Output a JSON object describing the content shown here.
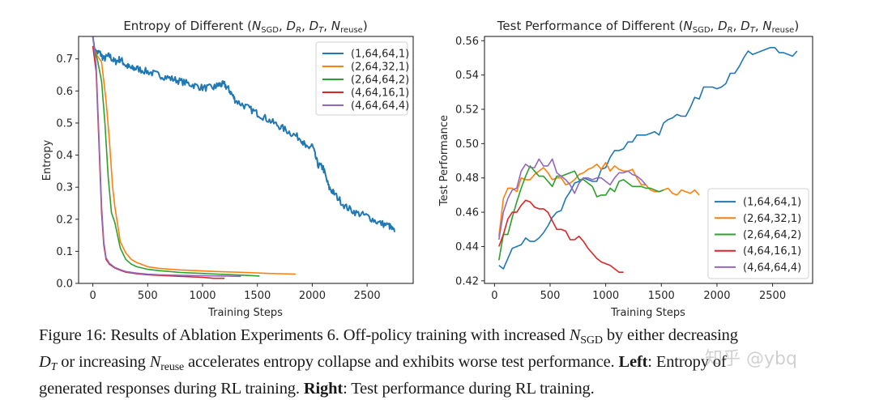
{
  "chart_data": [
    {
      "type": "line",
      "title": "Entropy of  Different (N_SGD, D_R, D_T, N_reuse)",
      "title_parts": {
        "prefix": "Entropy of  Different (",
        "v1": "N",
        "v1_sub": "SGD",
        "v2": "D",
        "v2_sub": "R",
        "v3": "D",
        "v3_sub": "T",
        "v4": "N",
        "v4_sub": "reuse",
        "suffix": ")"
      },
      "xlabel": "Training Steps",
      "ylabel": "Entropy",
      "xlim": [
        -130,
        2920
      ],
      "ylim": [
        0.0,
        0.77
      ],
      "xticks": [
        0,
        500,
        1000,
        1500,
        2000,
        2500
      ],
      "yticks": [
        0.0,
        0.1,
        0.2,
        0.3,
        0.4,
        0.5,
        0.6,
        0.7
      ],
      "ytick_labels": [
        "0.0",
        "0.1",
        "0.2",
        "0.3",
        "0.4",
        "0.5",
        "0.6",
        "0.7"
      ],
      "legend_position": "top-right",
      "grid": false,
      "series": [
        {
          "name": "(1,64,64,1)",
          "color": "#1f77b4",
          "noisy": true,
          "x": [
            0,
            20,
            60,
            100,
            150,
            200,
            250,
            300,
            350,
            400,
            500,
            600,
            700,
            800,
            900,
            1000,
            1100,
            1150,
            1200,
            1250,
            1300,
            1400,
            1500,
            1600,
            1700,
            1800,
            1900,
            1950,
            2000,
            2050,
            2100,
            2150,
            2200,
            2300,
            2400,
            2500,
            2600,
            2700,
            2750
          ],
          "y": [
            0.77,
            0.72,
            0.72,
            0.7,
            0.71,
            0.69,
            0.7,
            0.68,
            0.67,
            0.67,
            0.66,
            0.65,
            0.64,
            0.63,
            0.62,
            0.61,
            0.61,
            0.62,
            0.62,
            0.6,
            0.57,
            0.55,
            0.53,
            0.51,
            0.49,
            0.47,
            0.45,
            0.42,
            0.43,
            0.37,
            0.36,
            0.3,
            0.28,
            0.24,
            0.22,
            0.21,
            0.19,
            0.18,
            0.16
          ]
        },
        {
          "name": "(2,64,32,1)",
          "color": "#ff7f0e",
          "noisy": false,
          "x": [
            0,
            40,
            80,
            120,
            150,
            180,
            200,
            250,
            300,
            350,
            400,
            500,
            600,
            800,
            1000,
            1200,
            1400,
            1600,
            1850
          ],
          "y": [
            0.74,
            0.71,
            0.69,
            0.57,
            0.45,
            0.3,
            0.24,
            0.13,
            0.095,
            0.075,
            0.065,
            0.052,
            0.047,
            0.042,
            0.039,
            0.036,
            0.034,
            0.031,
            0.029
          ]
        },
        {
          "name": "(2,64,64,2)",
          "color": "#2ca02c",
          "noisy": false,
          "x": [
            0,
            40,
            80,
            110,
            140,
            170,
            200,
            250,
            300,
            350,
            400,
            500,
            600,
            800,
            1000,
            1200,
            1400,
            1520
          ],
          "y": [
            0.74,
            0.7,
            0.63,
            0.5,
            0.33,
            0.22,
            0.19,
            0.11,
            0.075,
            0.06,
            0.052,
            0.044,
            0.04,
            0.034,
            0.031,
            0.028,
            0.025,
            0.023
          ]
        },
        {
          "name": "(4,64,16,1)",
          "color": "#d62728",
          "noisy": false,
          "x": [
            0,
            30,
            60,
            80,
            100,
            120,
            150,
            200,
            250,
            300,
            400,
            500,
            600,
            800,
            1000,
            1100,
            1200
          ],
          "y": [
            0.74,
            0.66,
            0.4,
            0.22,
            0.12,
            0.075,
            0.06,
            0.048,
            0.041,
            0.035,
            0.03,
            0.027,
            0.025,
            0.022,
            0.019,
            0.016,
            0.016
          ]
        },
        {
          "name": "(4,64,64,4)",
          "color": "#9467bd",
          "noisy": false,
          "x": [
            0,
            30,
            60,
            80,
            100,
            120,
            150,
            200,
            250,
            300,
            400,
            500,
            600,
            800,
            1000,
            1200,
            1350
          ],
          "y": [
            0.77,
            0.68,
            0.42,
            0.24,
            0.13,
            0.08,
            0.063,
            0.05,
            0.043,
            0.037,
            0.032,
            0.029,
            0.027,
            0.025,
            0.024,
            0.023,
            0.022
          ]
        }
      ]
    },
    {
      "type": "line",
      "title": "Test Performance of Different (N_SGD, D_R, D_T, N_reuse)",
      "title_parts": {
        "prefix": "Test Performance of Different (",
        "v1": "N",
        "v1_sub": "SGD",
        "v2": "D",
        "v2_sub": "R",
        "v3": "D",
        "v3_sub": "T",
        "v4": "N",
        "v4_sub": "reuse",
        "suffix": ")"
      },
      "xlabel": "Training Steps",
      "ylabel": "Test Performance",
      "xlim": [
        -90,
        2860
      ],
      "ylim": [
        0.4185,
        0.5625
      ],
      "xticks": [
        0,
        500,
        1000,
        1500,
        2000,
        2500
      ],
      "yticks": [
        0.42,
        0.44,
        0.46,
        0.48,
        0.5,
        0.52,
        0.54,
        0.56
      ],
      "ytick_labels": [
        "0.42",
        "0.44",
        "0.46",
        "0.48",
        "0.50",
        "0.52",
        "0.54",
        "0.56"
      ],
      "legend_position": "center-right",
      "grid": false,
      "series": [
        {
          "name": "(1,64,64,1)",
          "color": "#1f77b4",
          "x": [
            40,
            80,
            120,
            160,
            200,
            240,
            280,
            320,
            360,
            400,
            440,
            480,
            520,
            560,
            600,
            640,
            680,
            720,
            760,
            800,
            840,
            880,
            920,
            960,
            1000,
            1040,
            1080,
            1120,
            1160,
            1200,
            1240,
            1280,
            1320,
            1360,
            1400,
            1440,
            1480,
            1520,
            1560,
            1600,
            1640,
            1680,
            1720,
            1760,
            1800,
            1840,
            1880,
            1920,
            1960,
            2000,
            2040,
            2080,
            2120,
            2160,
            2200,
            2240,
            2280,
            2320,
            2360,
            2400,
            2440,
            2480,
            2520,
            2560,
            2600,
            2640,
            2680,
            2720
          ],
          "y": [
            0.429,
            0.427,
            0.433,
            0.439,
            0.44,
            0.441,
            0.445,
            0.443,
            0.443,
            0.445,
            0.448,
            0.452,
            0.457,
            0.46,
            0.461,
            0.468,
            0.472,
            0.477,
            0.478,
            0.48,
            0.479,
            0.478,
            0.478,
            0.485,
            0.486,
            0.492,
            0.496,
            0.496,
            0.497,
            0.501,
            0.501,
            0.505,
            0.505,
            0.505,
            0.506,
            0.507,
            0.505,
            0.512,
            0.514,
            0.515,
            0.517,
            0.516,
            0.516,
            0.521,
            0.527,
            0.526,
            0.533,
            0.533,
            0.533,
            0.532,
            0.533,
            0.535,
            0.541,
            0.541,
            0.545,
            0.55,
            0.554,
            0.552,
            0.553,
            0.554,
            0.555,
            0.556,
            0.556,
            0.553,
            0.553,
            0.552,
            0.551,
            0.554
          ]
        },
        {
          "name": "(2,64,32,1)",
          "color": "#ff7f0e",
          "x": [
            40,
            80,
            120,
            160,
            200,
            240,
            280,
            320,
            360,
            400,
            440,
            480,
            520,
            560,
            600,
            640,
            680,
            720,
            760,
            800,
            840,
            880,
            920,
            960,
            1000,
            1040,
            1080,
            1120,
            1160,
            1200,
            1240,
            1280,
            1320,
            1360,
            1400,
            1440,
            1480,
            1520,
            1560,
            1600,
            1640,
            1680,
            1720,
            1760,
            1800,
            1840
          ],
          "y": [
            0.446,
            0.468,
            0.474,
            0.474,
            0.472,
            0.48,
            0.479,
            0.479,
            0.482,
            0.484,
            0.486,
            0.483,
            0.479,
            0.48,
            0.48,
            0.476,
            0.477,
            0.479,
            0.482,
            0.483,
            0.485,
            0.486,
            0.488,
            0.485,
            0.489,
            0.484,
            0.487,
            0.485,
            0.484,
            0.484,
            0.485,
            0.48,
            0.476,
            0.476,
            0.473,
            0.472,
            0.472,
            0.473,
            0.474,
            0.471,
            0.47,
            0.473,
            0.472,
            0.471,
            0.473,
            0.47
          ]
        },
        {
          "name": "(2,64,64,2)",
          "color": "#2ca02c",
          "x": [
            40,
            80,
            120,
            160,
            200,
            240,
            280,
            320,
            360,
            400,
            440,
            480,
            520,
            560,
            600,
            640,
            680,
            720,
            760,
            800,
            840,
            880,
            920,
            960,
            1000,
            1040,
            1080,
            1120,
            1160,
            1200,
            1240,
            1280,
            1320,
            1360,
            1400,
            1440,
            1480,
            1520
          ],
          "y": [
            0.432,
            0.447,
            0.447,
            0.457,
            0.466,
            0.474,
            0.481,
            0.487,
            0.484,
            0.481,
            0.481,
            0.478,
            0.475,
            0.481,
            0.481,
            0.482,
            0.483,
            0.484,
            0.479,
            0.479,
            0.477,
            0.475,
            0.469,
            0.47,
            0.47,
            0.474,
            0.472,
            0.478,
            0.479,
            0.477,
            0.475,
            0.475,
            0.475,
            0.474,
            0.474,
            0.473,
            0.472,
            0.473
          ]
        },
        {
          "name": "(4,64,16,1)",
          "color": "#d62728",
          "x": [
            40,
            80,
            120,
            160,
            200,
            240,
            280,
            320,
            360,
            400,
            440,
            480,
            520,
            560,
            600,
            640,
            680,
            720,
            760,
            800,
            840,
            880,
            920,
            960,
            1000,
            1040,
            1080,
            1120,
            1160
          ],
          "y": [
            0.44,
            0.447,
            0.456,
            0.46,
            0.46,
            0.464,
            0.467,
            0.466,
            0.463,
            0.462,
            0.462,
            0.46,
            0.455,
            0.45,
            0.45,
            0.449,
            0.444,
            0.444,
            0.446,
            0.443,
            0.439,
            0.436,
            0.433,
            0.431,
            0.43,
            0.429,
            0.427,
            0.425,
            0.425
          ]
        },
        {
          "name": "(4,64,64,4)",
          "color": "#9467bd",
          "x": [
            40,
            80,
            120,
            160,
            200,
            240,
            280,
            320,
            360,
            400,
            440,
            480,
            520,
            560,
            600,
            640,
            680,
            720,
            760,
            800,
            840,
            880,
            920,
            960,
            1000,
            1040,
            1080,
            1120,
            1160,
            1200,
            1240,
            1280,
            1320,
            1360
          ],
          "y": [
            0.444,
            0.46,
            0.468,
            0.473,
            0.474,
            0.484,
            0.488,
            0.486,
            0.486,
            0.491,
            0.487,
            0.487,
            0.491,
            0.483,
            0.481,
            0.479,
            0.476,
            0.471,
            0.477,
            0.48,
            0.48,
            0.479,
            0.48,
            0.48,
            0.478,
            0.476,
            0.48,
            0.483,
            0.483,
            0.484,
            0.482,
            0.481,
            0.479,
            0.476
          ]
        }
      ]
    }
  ],
  "caption": {
    "figure_label": "Figure 16:",
    "line1_a": " Results of Ablation Experiments 6. Off-policy training with increased ",
    "n_sgd": "N",
    "n_sgd_sub": "SGD",
    "line1_b": " by either decreasing",
    "d_t": "D",
    "d_t_sub": "T",
    "line2_a": " or increasing ",
    "n_reuse": "N",
    "n_reuse_sub": "reuse",
    "line2_b": " accelerates entropy collapse and exhibits worse test performance. ",
    "left_label": "Left",
    "line2_c": ": Entropy of",
    "line3_a": "generated responses during RL training. ",
    "right_label": "Right",
    "line3_b": ": Test performance during RL training."
  },
  "watermark": "知乎 @ybq"
}
